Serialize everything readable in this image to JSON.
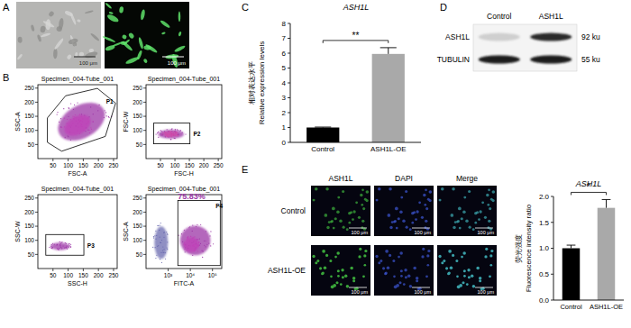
{
  "panel_labels": [
    "A",
    "B",
    "C",
    "D",
    "E"
  ],
  "panel_a": {
    "scale_bars": [
      "100 μm",
      "100 μm"
    ]
  },
  "panel_b": {
    "plots": [
      {
        "title": "Specimen_004-Tube_001",
        "x_label": "FSC-A",
        "y_label": "SSC-A",
        "gate": "P1",
        "xlim": [
          0,
          262
        ],
        "ylim": [
          0,
          262
        ],
        "xticks": [
          50,
          100,
          150,
          200,
          250
        ],
        "yticks": [
          50,
          100,
          150,
          200,
          250
        ]
      },
      {
        "title": "Specimen_004-Tube_001",
        "x_label": "FSC-H",
        "y_label": "FSC-W",
        "gate": "P2",
        "xlim": [
          0,
          262
        ],
        "ylim": [
          0,
          262
        ],
        "xticks": [
          50,
          100,
          150,
          200,
          250
        ],
        "yticks": [
          50,
          100,
          150,
          200,
          250
        ]
      },
      {
        "title": "Specimen_004-Tube_001",
        "x_label": "SSC-H",
        "y_label": "SSC-W",
        "gate": "P3",
        "xlim": [
          0,
          262
        ],
        "ylim": [
          0,
          262
        ],
        "xticks": [
          50,
          100,
          150,
          200,
          250
        ],
        "yticks": [
          50,
          100,
          150,
          200,
          250
        ]
      },
      {
        "title": "Specimen_004-Tube_001",
        "x_label": "FITC-A",
        "y_label": "SSC-A",
        "gate": "P4",
        "gate_percent": "75.83%",
        "log": "x",
        "xlim": [
          100,
          262144
        ],
        "ylim": [
          0,
          262
        ],
        "xticks": [
          {
            "value": 1000,
            "label": "10³"
          },
          {
            "value": 10000,
            "label": "10⁴"
          },
          {
            "value": 100000,
            "label": "10⁵"
          }
        ],
        "yticks": [
          50,
          100,
          150,
          200,
          250
        ]
      }
    ]
  },
  "panel_d": {
    "lanes": [
      "Control",
      "ASH1L"
    ],
    "rows": [
      {
        "label": "ASH1L",
        "size": "92 ku"
      },
      {
        "label": "TUBULIN",
        "size": "55 ku"
      }
    ]
  },
  "panel_e": {
    "columns": [
      "ASH1L",
      "DAPI",
      "Merge"
    ],
    "rows": [
      "Control",
      "ASH1L-OE"
    ],
    "scale_bar": "100 μm"
  },
  "chart_data": [
    {
      "type": "bar",
      "title": "ASH1L",
      "y_label": [
        "相对表达水平",
        "Relative expression levels"
      ],
      "categories": [
        "Control",
        "ASH1L-OE"
      ],
      "values": [
        1.0,
        5.95
      ],
      "errors": [
        0.03,
        0.42
      ],
      "colors": [
        "#000000",
        "#a9a9a9"
      ],
      "ylim": [
        0,
        8
      ],
      "yticks": [
        0,
        1,
        2,
        3,
        4,
        5,
        6,
        7,
        8
      ],
      "significance": "**"
    },
    {
      "type": "bar",
      "title": "ASH1L",
      "y_label": [
        "荧光强度",
        "Fluorescence intensity ratio"
      ],
      "categories": [
        "Control",
        "ASH1L-OE"
      ],
      "values": [
        1.0,
        1.78
      ],
      "errors": [
        0.06,
        0.16
      ],
      "colors": [
        "#000000",
        "#a9a9a9"
      ],
      "ylim": [
        0,
        2
      ],
      "yticks": [
        {
          "value": 0,
          "label": "0.0"
        },
        0.5,
        {
          "value": 1,
          "label": "1.0"
        },
        1.5,
        {
          "value": 2,
          "label": "2.0"
        }
      ],
      "significance": "*"
    }
  ]
}
